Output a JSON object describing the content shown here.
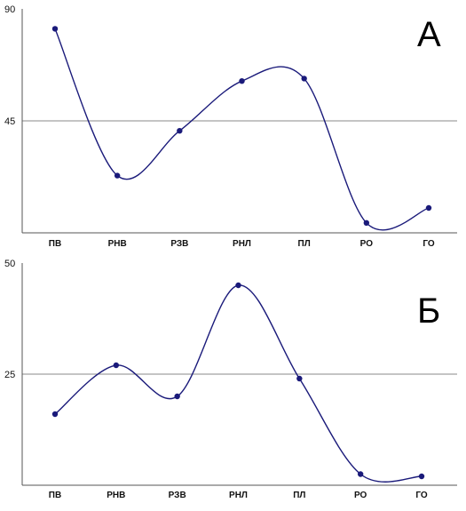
{
  "chart_data": [
    {
      "type": "line",
      "panel_label": "А",
      "categories": [
        "ПВ",
        "РНВ",
        "РЗВ",
        "РНЛ",
        "ПЛ",
        "РО",
        "ГО"
      ],
      "values": [
        82,
        23,
        41,
        61,
        62,
        4,
        10
      ],
      "ylim": [
        0,
        90
      ],
      "yticks": [
        "90",
        "45"
      ],
      "gridlines": [
        45
      ],
      "smooth": true,
      "color": "#1a1a7a"
    },
    {
      "type": "line",
      "panel_label": "Б",
      "categories": [
        "ПВ",
        "РНВ",
        "РЗВ",
        "РНЛ",
        "ПЛ",
        "РО",
        "ГО"
      ],
      "values": [
        16,
        27,
        20,
        45,
        24,
        2.5,
        2
      ],
      "ylim": [
        0,
        50
      ],
      "yticks": [
        "50",
        "25"
      ],
      "gridlines": [
        25
      ],
      "smooth": true,
      "color": "#1a1a7a"
    }
  ]
}
